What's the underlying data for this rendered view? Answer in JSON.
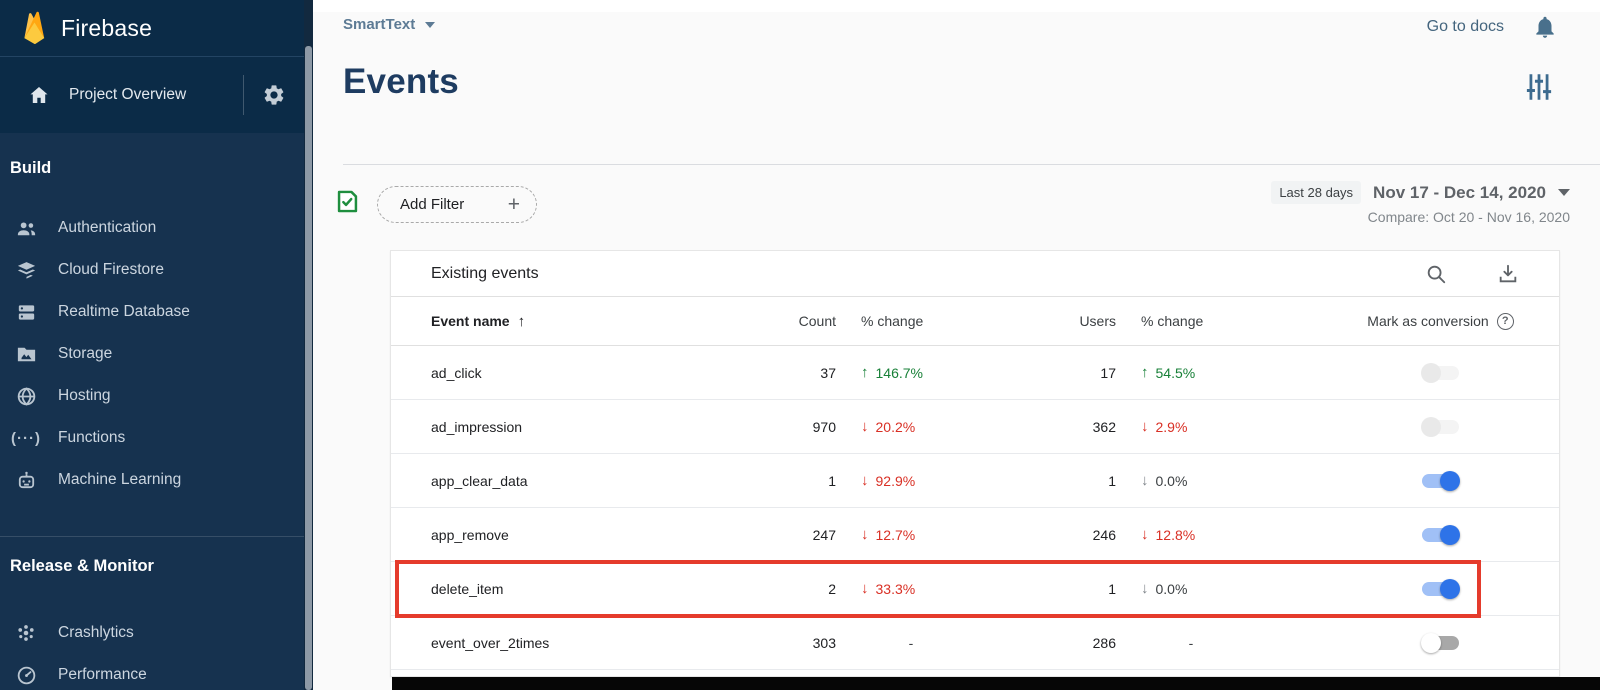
{
  "sidebar": {
    "brand": "Firebase",
    "project_overview": "Project Overview",
    "sections": [
      {
        "label": "Build",
        "items": [
          {
            "icon": "users-icon",
            "label": "Authentication"
          },
          {
            "icon": "firestore-icon",
            "label": "Cloud Firestore"
          },
          {
            "icon": "database-icon",
            "label": "Realtime Database"
          },
          {
            "icon": "storage-icon",
            "label": "Storage"
          },
          {
            "icon": "globe-icon",
            "label": "Hosting"
          },
          {
            "icon": "functions-icon",
            "label": "Functions"
          },
          {
            "icon": "ml-icon",
            "label": "Machine Learning"
          }
        ]
      },
      {
        "label": "Release & Monitor",
        "items": [
          {
            "icon": "crashlytics-icon",
            "label": "Crashlytics"
          },
          {
            "icon": "performance-icon",
            "label": "Performance"
          }
        ]
      }
    ]
  },
  "topbar": {
    "project_name": "SmartText",
    "go_to_docs": "Go to docs"
  },
  "page": {
    "title": "Events"
  },
  "filters": {
    "add_filter_label": "Add Filter",
    "plus": "+",
    "range_chip": "Last 28 days",
    "date_range": "Nov 17 - Dec 14, 2020",
    "compare": "Compare: Oct 20 - Nov 16, 2020"
  },
  "table": {
    "title": "Existing events",
    "columns": {
      "event": "Event name",
      "count": "Count",
      "change": "% change",
      "users": "Users",
      "users_change": "% change",
      "conversion": "Mark as conversion"
    },
    "sort_arrow": "↑",
    "help_glyph": "?",
    "rows": [
      {
        "event": "ad_click",
        "count": "37",
        "change": {
          "dir": "up",
          "tone": "green",
          "value": "146.7%"
        },
        "users": "17",
        "users_change": {
          "dir": "up",
          "tone": "green",
          "value": "54.5%"
        },
        "toggle": "disabled",
        "highlighted": false
      },
      {
        "event": "ad_impression",
        "count": "970",
        "change": {
          "dir": "down",
          "tone": "red",
          "value": "20.2%"
        },
        "users": "362",
        "users_change": {
          "dir": "down",
          "tone": "red",
          "value": "2.9%"
        },
        "toggle": "disabled",
        "highlighted": false
      },
      {
        "event": "app_clear_data",
        "count": "1",
        "change": {
          "dir": "down",
          "tone": "red",
          "value": "92.9%"
        },
        "users": "1",
        "users_change": {
          "dir": "down",
          "tone": "gray",
          "value": "0.0%"
        },
        "toggle": "on",
        "highlighted": false
      },
      {
        "event": "app_remove",
        "count": "247",
        "change": {
          "dir": "down",
          "tone": "red",
          "value": "12.7%"
        },
        "users": "246",
        "users_change": {
          "dir": "down",
          "tone": "red",
          "value": "12.8%"
        },
        "toggle": "on",
        "highlighted": false
      },
      {
        "event": "delete_item",
        "count": "2",
        "change": {
          "dir": "down",
          "tone": "red",
          "value": "33.3%"
        },
        "users": "1",
        "users_change": {
          "dir": "down",
          "tone": "gray",
          "value": "0.0%"
        },
        "toggle": "on",
        "highlighted": true
      },
      {
        "event": "event_over_2times",
        "count": "303",
        "change": {
          "dash": true
        },
        "users": "286",
        "users_change": {
          "dash": true
        },
        "toggle": "off",
        "highlighted": false
      }
    ]
  },
  "colors": {
    "accent_blue": "#2e73e8",
    "positive_green": "#188038",
    "negative_red": "#d93025",
    "sidebar_bg": "#16324f",
    "sidebar_header_bg": "#0b2b47",
    "highlight_red": "#e53b2c"
  }
}
